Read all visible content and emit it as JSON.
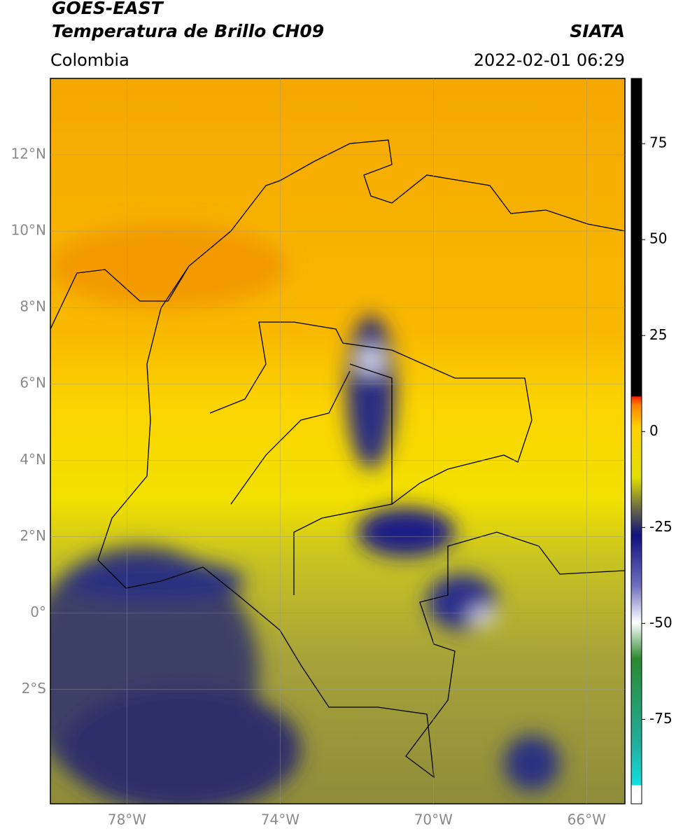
{
  "header": {
    "title": "GOES-EAST",
    "subtitle": "Temperatura de Brillo CH09",
    "source": "SIATA",
    "region": "Colombia",
    "datetime": "2022-02-01 06:29"
  },
  "map": {
    "xlim": [
      -80,
      -65
    ],
    "ylim": [
      -5,
      14
    ],
    "xticks": [
      {
        "value": -78,
        "label": "78°W"
      },
      {
        "value": -74,
        "label": "74°W"
      },
      {
        "value": -70,
        "label": "70°W"
      },
      {
        "value": -66,
        "label": "66°W"
      }
    ],
    "yticks": [
      {
        "value": 12,
        "label": "12°N"
      },
      {
        "value": 10,
        "label": "10°N"
      },
      {
        "value": 8,
        "label": "8°N"
      },
      {
        "value": 6,
        "label": "6°N"
      },
      {
        "value": 4,
        "label": "4°N"
      },
      {
        "value": 2,
        "label": "2°N"
      },
      {
        "value": 0,
        "label": "0°"
      },
      {
        "value": -2,
        "label": "2°S"
      }
    ],
    "grid": true
  },
  "colorbar": {
    "lim": [
      -97,
      92
    ],
    "ticks": [
      75,
      50,
      25,
      0,
      -25,
      -50,
      -75
    ]
  }
}
